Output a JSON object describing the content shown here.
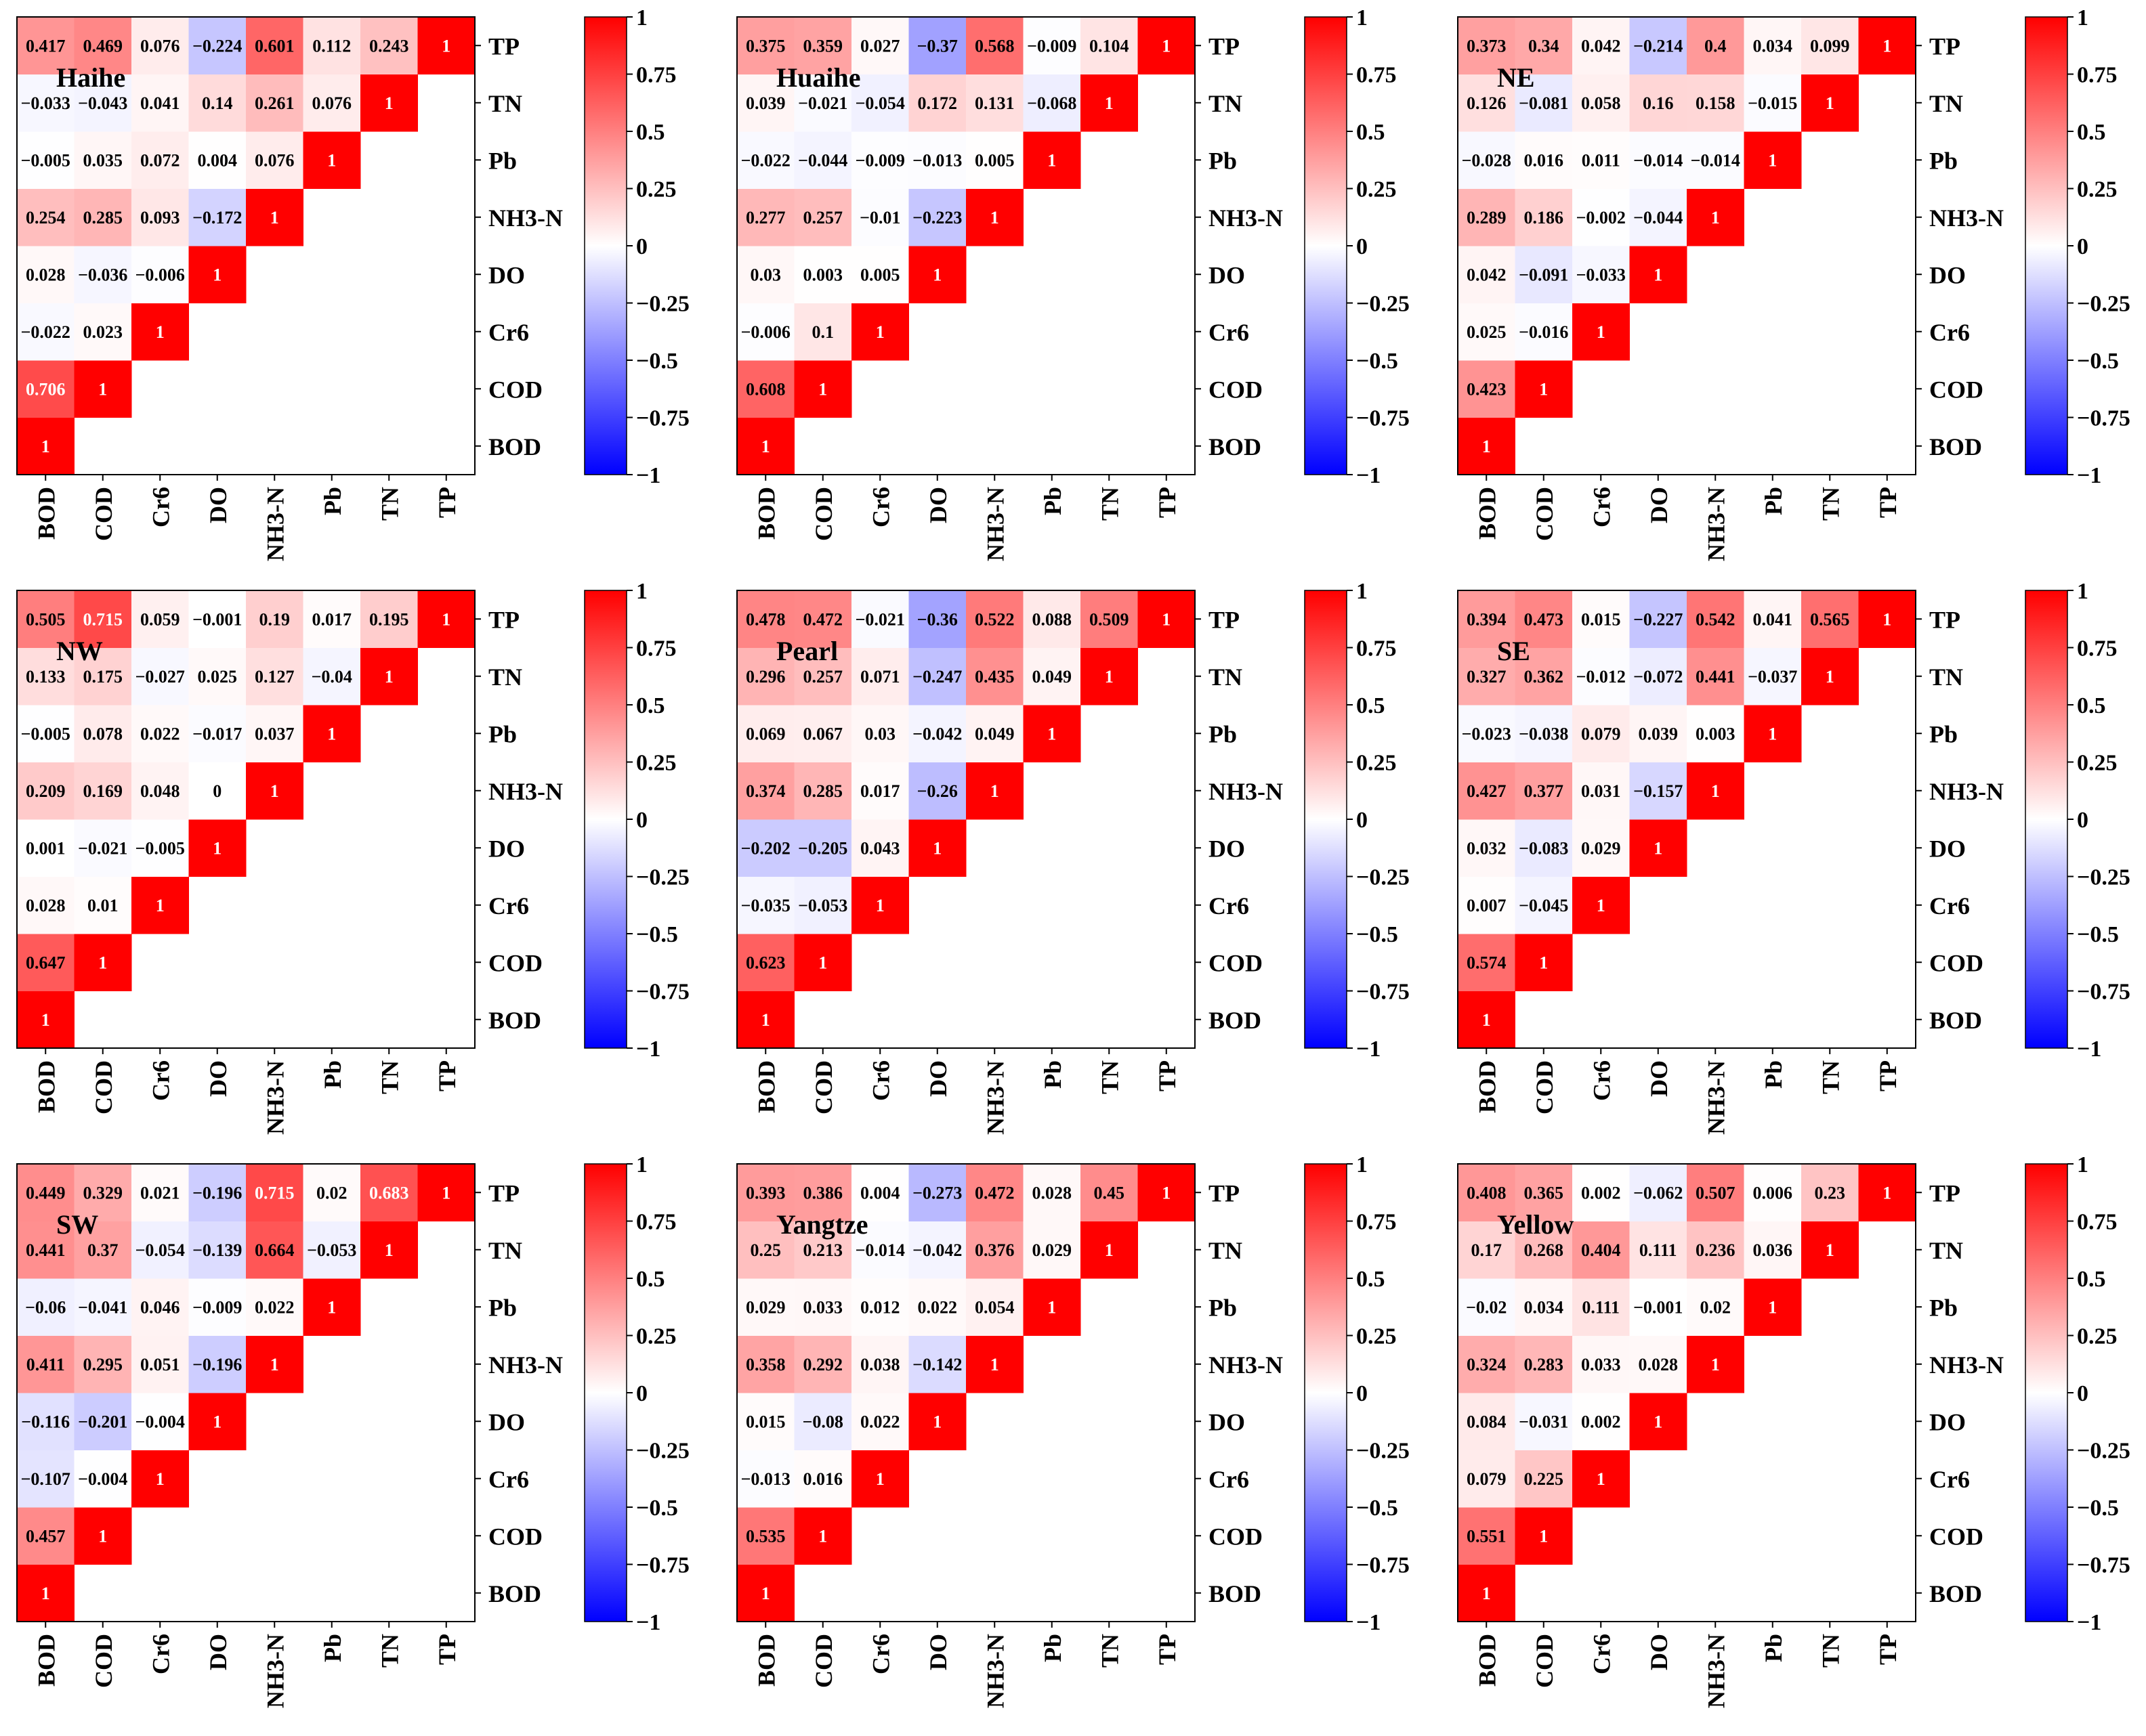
{
  "variables": [
    "BOD",
    "COD",
    "Cr6",
    "DO",
    "NH3-N",
    "Pb",
    "TN",
    "TP"
  ],
  "colorbar": {
    "ticks": [
      "1",
      "0.75",
      "0.5",
      "0.25",
      "0",
      "−0.25",
      "−0.5",
      "−0.75",
      "−1"
    ],
    "low_color": "#0000ff",
    "mid_color": "#ffffff",
    "high_color": "#ff0000"
  },
  "chart_data": [
    {
      "type": "heatmap",
      "title": "Haihe",
      "labels": [
        "BOD",
        "COD",
        "Cr6",
        "DO",
        "NH3-N",
        "Pb",
        "TN",
        "TP"
      ],
      "values": [
        [
          "1"
        ],
        [
          "0.706",
          "1"
        ],
        [
          "−0.022",
          "0.023",
          "1"
        ],
        [
          "0.028",
          "−0.036",
          "−0.006",
          "1"
        ],
        [
          "0.254",
          "0.285",
          "0.093",
          "−0.172",
          "1"
        ],
        [
          "−0.005",
          "0.035",
          "0.072",
          "0.004",
          "0.076",
          "1"
        ],
        [
          "−0.033",
          "−0.043",
          "0.041",
          "0.14",
          "0.261",
          "0.076",
          "1"
        ],
        [
          "0.417",
          "0.469",
          "0.076",
          "−0.224",
          "0.601",
          "0.112",
          "0.243",
          "1"
        ]
      ],
      "vlim": [
        -1,
        1
      ]
    },
    {
      "type": "heatmap",
      "title": "Huaihe",
      "labels": [
        "BOD",
        "COD",
        "Cr6",
        "DO",
        "NH3-N",
        "Pb",
        "TN",
        "TP"
      ],
      "values": [
        [
          "1"
        ],
        [
          "0.608",
          "1"
        ],
        [
          "−0.006",
          "0.1",
          "1"
        ],
        [
          "0.03",
          "0.003",
          "0.005",
          "1"
        ],
        [
          "0.277",
          "0.257",
          "−0.01",
          "−0.223",
          "1"
        ],
        [
          "−0.022",
          "−0.044",
          "−0.009",
          "−0.013",
          "0.005",
          "1"
        ],
        [
          "0.039",
          "−0.021",
          "−0.054",
          "0.172",
          "0.131",
          "−0.068",
          "1"
        ],
        [
          "0.375",
          "0.359",
          "0.027",
          "−0.37",
          "0.568",
          "−0.009",
          "0.104",
          "1"
        ]
      ],
      "vlim": [
        -1,
        1
      ]
    },
    {
      "type": "heatmap",
      "title": "NE",
      "labels": [
        "BOD",
        "COD",
        "Cr6",
        "DO",
        "NH3-N",
        "Pb",
        "TN",
        "TP"
      ],
      "values": [
        [
          "1"
        ],
        [
          "0.423",
          "1"
        ],
        [
          "0.025",
          "−0.016",
          "1"
        ],
        [
          "0.042",
          "−0.091",
          "−0.033",
          "1"
        ],
        [
          "0.289",
          "0.186",
          "−0.002",
          "−0.044",
          "1"
        ],
        [
          "−0.028",
          "0.016",
          "0.011",
          "−0.014",
          "−0.014",
          "1"
        ],
        [
          "0.126",
          "−0.081",
          "0.058",
          "0.16",
          "0.158",
          "−0.015",
          "1"
        ],
        [
          "0.373",
          "0.34",
          "0.042",
          "−0.214",
          "0.4",
          "0.034",
          "0.099",
          "1"
        ]
      ],
      "vlim": [
        -1,
        1
      ]
    },
    {
      "type": "heatmap",
      "title": "NW",
      "labels": [
        "BOD",
        "COD",
        "Cr6",
        "DO",
        "NH3-N",
        "Pb",
        "TN",
        "TP"
      ],
      "values": [
        [
          "1"
        ],
        [
          "0.647",
          "1"
        ],
        [
          "0.028",
          "0.01",
          "1"
        ],
        [
          "0.001",
          "−0.021",
          "−0.005",
          "1"
        ],
        [
          "0.209",
          "0.169",
          "0.048",
          "0",
          "1"
        ],
        [
          "−0.005",
          "0.078",
          "0.022",
          "−0.017",
          "0.037",
          "1"
        ],
        [
          "0.133",
          "0.175",
          "−0.027",
          "0.025",
          "0.127",
          "−0.04",
          "1"
        ],
        [
          "0.505",
          "0.715",
          "0.059",
          "−0.001",
          "0.19",
          "0.017",
          "0.195",
          "1"
        ]
      ],
      "vlim": [
        -1,
        1
      ]
    },
    {
      "type": "heatmap",
      "title": "Pearl",
      "labels": [
        "BOD",
        "COD",
        "Cr6",
        "DO",
        "NH3-N",
        "Pb",
        "TN",
        "TP"
      ],
      "values": [
        [
          "1"
        ],
        [
          "0.623",
          "1"
        ],
        [
          "−0.035",
          "−0.053",
          "1"
        ],
        [
          "−0.202",
          "−0.205",
          "0.043",
          "1"
        ],
        [
          "0.374",
          "0.285",
          "0.017",
          "−0.26",
          "1"
        ],
        [
          "0.069",
          "0.067",
          "0.03",
          "−0.042",
          "0.049",
          "1"
        ],
        [
          "0.296",
          "0.257",
          "0.071",
          "−0.247",
          "0.435",
          "0.049",
          "1"
        ],
        [
          "0.478",
          "0.472",
          "−0.021",
          "−0.36",
          "0.522",
          "0.088",
          "0.509",
          "1"
        ]
      ],
      "vlim": [
        -1,
        1
      ]
    },
    {
      "type": "heatmap",
      "title": "SE",
      "labels": [
        "BOD",
        "COD",
        "Cr6",
        "DO",
        "NH3-N",
        "Pb",
        "TN",
        "TP"
      ],
      "values": [
        [
          "1"
        ],
        [
          "0.574",
          "1"
        ],
        [
          "0.007",
          "−0.045",
          "1"
        ],
        [
          "0.032",
          "−0.083",
          "0.029",
          "1"
        ],
        [
          "0.427",
          "0.377",
          "0.031",
          "−0.157",
          "1"
        ],
        [
          "−0.023",
          "−0.038",
          "0.079",
          "0.039",
          "0.003",
          "1"
        ],
        [
          "0.327",
          "0.362",
          "−0.012",
          "−0.072",
          "0.441",
          "−0.037",
          "1"
        ],
        [
          "0.394",
          "0.473",
          "0.015",
          "−0.227",
          "0.542",
          "0.041",
          "0.565",
          "1"
        ]
      ],
      "vlim": [
        -1,
        1
      ]
    },
    {
      "type": "heatmap",
      "title": "SW",
      "labels": [
        "BOD",
        "COD",
        "Cr6",
        "DO",
        "NH3-N",
        "Pb",
        "TN",
        "TP"
      ],
      "values": [
        [
          "1"
        ],
        [
          "0.457",
          "1"
        ],
        [
          "−0.107",
          "−0.004",
          "1"
        ],
        [
          "−0.116",
          "−0.201",
          "−0.004",
          "1"
        ],
        [
          "0.411",
          "0.295",
          "0.051",
          "−0.196",
          "1"
        ],
        [
          "−0.06",
          "−0.041",
          "0.046",
          "−0.009",
          "0.022",
          "1"
        ],
        [
          "0.441",
          "0.37",
          "−0.054",
          "−0.139",
          "0.664",
          "−0.053",
          "1"
        ],
        [
          "0.449",
          "0.329",
          "0.021",
          "−0.196",
          "0.715",
          "0.02",
          "0.683",
          "1"
        ]
      ],
      "vlim": [
        -1,
        1
      ]
    },
    {
      "type": "heatmap",
      "title": "Yangtze",
      "labels": [
        "BOD",
        "COD",
        "Cr6",
        "DO",
        "NH3-N",
        "Pb",
        "TN",
        "TP"
      ],
      "values": [
        [
          "1"
        ],
        [
          "0.535",
          "1"
        ],
        [
          "−0.013",
          "0.016",
          "1"
        ],
        [
          "0.015",
          "−0.08",
          "0.022",
          "1"
        ],
        [
          "0.358",
          "0.292",
          "0.038",
          "−0.142",
          "1"
        ],
        [
          "0.029",
          "0.033",
          "0.012",
          "0.022",
          "0.054",
          "1"
        ],
        [
          "0.25",
          "0.213",
          "−0.014",
          "−0.042",
          "0.376",
          "0.029",
          "1"
        ],
        [
          "0.393",
          "0.386",
          "0.004",
          "−0.273",
          "0.472",
          "0.028",
          "0.45",
          "1"
        ]
      ],
      "vlim": [
        -1,
        1
      ]
    },
    {
      "type": "heatmap",
      "title": "Yellow",
      "labels": [
        "BOD",
        "COD",
        "Cr6",
        "DO",
        "NH3-N",
        "Pb",
        "TN",
        "TP"
      ],
      "values": [
        [
          "1"
        ],
        [
          "0.551",
          "1"
        ],
        [
          "0.079",
          "0.225",
          "1"
        ],
        [
          "0.084",
          "−0.031",
          "0.002",
          "1"
        ],
        [
          "0.324",
          "0.283",
          "0.033",
          "0.028",
          "1"
        ],
        [
          "−0.02",
          "0.034",
          "0.111",
          "−0.001",
          "0.02",
          "1"
        ],
        [
          "0.17",
          "0.268",
          "0.404",
          "0.111",
          "0.236",
          "0.036",
          "1"
        ],
        [
          "0.408",
          "0.365",
          "0.002",
          "−0.062",
          "0.507",
          "0.006",
          "0.23",
          "1"
        ]
      ],
      "vlim": [
        -1,
        1
      ]
    }
  ]
}
